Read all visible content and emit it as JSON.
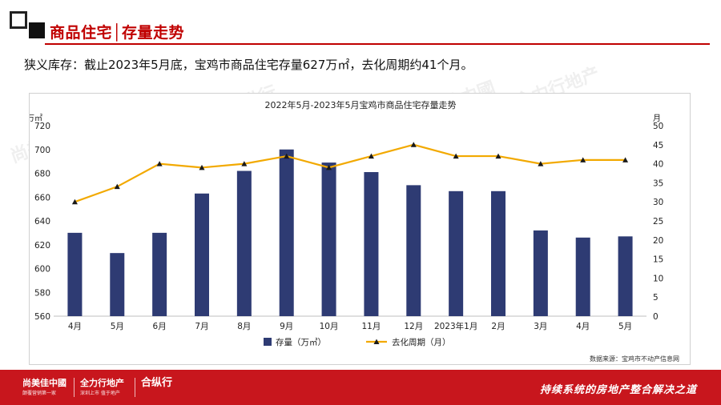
{
  "header": {
    "title": "商品住宅│存量走势"
  },
  "summary": "狭义库存：截止2023年5月底，宝鸡市商品住宅存量627万㎡，去化周期约41个月。",
  "source": "数据来源：宝鸡市不动产信息网",
  "footer": {
    "logos": [
      {
        "name": "尚美佳中國",
        "sub": "颠覆营销第一家"
      },
      {
        "name": "全力行地产",
        "sub": "深圳上市 值于地产"
      },
      {
        "name": "合纵行",
        "sub": ""
      }
    ],
    "slogan": "持续系统的房地产整合解决之道"
  },
  "watermarks": [
    "尚美佳中國",
    "全力行地产",
    "合纵行"
  ],
  "colors": {
    "bar": "#2e3b73",
    "line": "#f2a900",
    "marker": "#1a1a1a",
    "brand_red": "#c8161d",
    "title_red": "#c00000"
  },
  "chart_data": {
    "type": "bar",
    "title": "2022年5月-2023年5月宝鸡市商品住宅存量走势",
    "categories": [
      "4月",
      "5月",
      "6月",
      "7月",
      "8月",
      "9月",
      "10月",
      "11月",
      "12月",
      "2023年1月",
      "2月",
      "3月",
      "4月",
      "5月"
    ],
    "y_left": {
      "unit": "万㎡",
      "ylim": [
        560,
        720
      ],
      "ticks": [
        560,
        580,
        600,
        620,
        640,
        660,
        680,
        700,
        720
      ]
    },
    "y_right": {
      "unit": "月",
      "ylim": [
        0,
        50
      ],
      "ticks": [
        0,
        5,
        10,
        15,
        20,
        25,
        30,
        35,
        40,
        45,
        50
      ]
    },
    "series": [
      {
        "name": "存量（万㎡）",
        "type": "bar",
        "axis": "left",
        "values": [
          630,
          613,
          630,
          663,
          682,
          700,
          689,
          681,
          670,
          665,
          665,
          632,
          626,
          627
        ]
      },
      {
        "name": "去化周期（月）",
        "type": "line",
        "axis": "right",
        "values": [
          30,
          34,
          40,
          39,
          40,
          42,
          39,
          42,
          45,
          42,
          42,
          40,
          41,
          41
        ]
      }
    ],
    "grid": false,
    "legend": "bottom"
  }
}
